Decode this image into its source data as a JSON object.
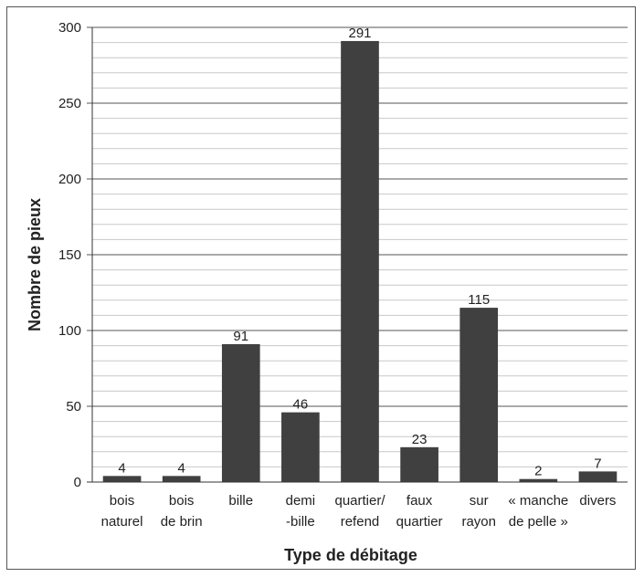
{
  "chart_data": {
    "type": "bar",
    "title": "",
    "xlabel": "Type de débitage",
    "ylabel": "Nombre de pieux",
    "ylim": [
      0,
      300
    ],
    "yticks": [
      0,
      50,
      100,
      150,
      200,
      250,
      300
    ],
    "minor_grid_step": 10,
    "grid": true,
    "categories": [
      [
        "bois",
        "naturel"
      ],
      [
        "bois",
        "de brin"
      ],
      [
        "bille"
      ],
      [
        "demi",
        "-bille"
      ],
      [
        "quartier/",
        "refend"
      ],
      [
        "faux",
        "quartier"
      ],
      [
        "sur",
        "rayon"
      ],
      [
        "« manche",
        "de pelle »"
      ],
      [
        "divers"
      ]
    ],
    "values": [
      4,
      4,
      91,
      46,
      291,
      23,
      115,
      2,
      7
    ],
    "data_labels": [
      "4",
      "4",
      "91",
      "46",
      "291",
      "23",
      "115",
      "2",
      "7"
    ],
    "bar_color": "#404040",
    "major_grid_color": "#555555",
    "minor_grid_color": "#c8c8c8"
  }
}
